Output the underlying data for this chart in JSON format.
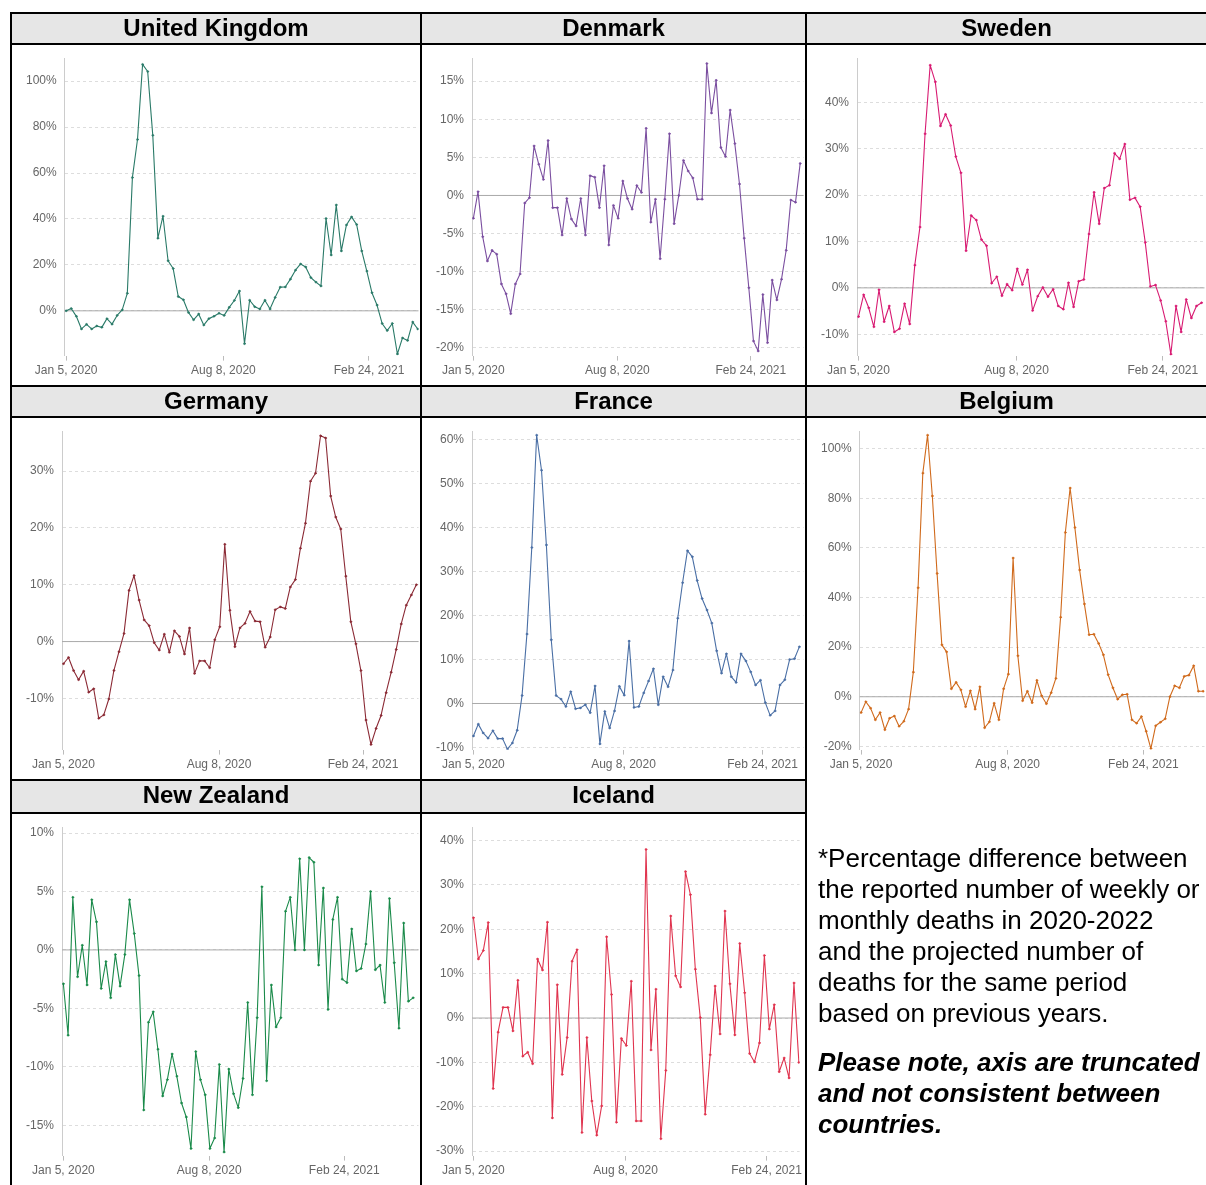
{
  "chart_data": [
    {
      "type": "line",
      "title": "United Kingdom",
      "x": [
        "2020-01-05",
        "2020-01-12",
        "2020-01-19",
        "2020-01-26",
        "2020-02-02",
        "2020-02-09",
        "2020-02-16",
        "2020-02-23",
        "2020-03-01",
        "2020-03-08",
        "2020-03-15",
        "2020-03-22",
        "2020-03-29",
        "2020-04-05",
        "2020-04-12",
        "2020-04-19",
        "2020-04-26",
        "2020-05-03",
        "2020-05-10",
        "2020-05-17",
        "2020-05-24",
        "2020-05-31",
        "2020-06-07",
        "2020-06-14",
        "2020-06-21",
        "2020-06-28",
        "2020-07-05",
        "2020-07-12",
        "2020-07-19",
        "2020-07-26",
        "2020-08-02",
        "2020-08-09",
        "2020-08-16",
        "2020-08-23",
        "2020-08-30",
        "2020-09-06",
        "2020-09-13",
        "2020-09-20",
        "2020-09-27",
        "2020-10-04",
        "2020-10-11",
        "2020-10-18",
        "2020-10-25",
        "2020-11-01",
        "2020-11-08",
        "2020-11-15",
        "2020-11-22",
        "2020-11-29",
        "2020-12-06",
        "2020-12-13",
        "2020-12-20",
        "2020-12-27",
        "2021-01-03",
        "2021-01-10",
        "2021-01-17",
        "2021-01-24",
        "2021-01-31",
        "2021-02-07",
        "2021-02-14",
        "2021-02-21",
        "2021-02-28",
        "2021-03-07",
        "2021-03-14",
        "2021-03-21",
        "2021-03-28",
        "2021-04-04",
        "2021-04-11",
        "2021-04-18",
        "2021-04-25",
        "2021-05-02"
      ],
      "series": [
        {
          "color": "#2a7a68",
          "values": [
            0,
            1,
            -2.4,
            -7.9,
            -5.9,
            -7.9,
            -6.6,
            -7.2,
            -3.4,
            -5.8,
            -2,
            0.4,
            7.6,
            58,
            74.6,
            107.3,
            104.2,
            76.4,
            31.6,
            41.2,
            21.8,
            18.4,
            6.2,
            4.8,
            -0.7,
            -3.9,
            -1.4,
            -6.2,
            -3.4,
            -2.4,
            -1.1,
            -2,
            1.5,
            4.5,
            8.6,
            -14.3,
            4.6,
            1.8,
            0.8,
            4.6,
            0.8,
            5.8,
            10.3,
            10.4,
            13.8,
            17.7,
            20.4,
            19.1,
            14.5,
            12.5,
            10.8,
            40.2,
            24.3,
            46.1,
            26.1,
            37.4,
            40.9,
            37.6,
            26.1,
            17.3,
            7.9,
            2.5,
            -5.5,
            -8.6,
            -5.5,
            -18.8,
            -11.8,
            -12.9,
            -4.9,
            -7.9
          ]
        }
      ],
      "xlim": [
        "2020-01-03",
        "2021-05-03"
      ],
      "xticks": [
        {
          "value": "2020-01-05",
          "label": "Jan 5, 2020"
        },
        {
          "value": "2020-08-08",
          "label": "Aug 8, 2020"
        },
        {
          "value": "2021-02-24",
          "label": "Feb 24, 2021"
        }
      ],
      "ylim": [
        -19.5,
        110
      ],
      "yticks": [
        {
          "value": 0,
          "label": "0%"
        },
        {
          "value": 20,
          "label": "20%"
        },
        {
          "value": 40,
          "label": "40%"
        },
        {
          "value": 60,
          "label": "60%"
        },
        {
          "value": 80,
          "label": "80%"
        },
        {
          "value": 100,
          "label": "100%"
        }
      ],
      "grid": "y",
      "marker": "circle",
      "ref_lines": [
        {
          "axis": "y",
          "value": 0,
          "color": "#aaaaaa"
        }
      ]
    },
    {
      "type": "line",
      "title": "Denmark",
      "x": [
        "2020-01-05",
        "2020-01-12",
        "2020-01-19",
        "2020-01-26",
        "2020-02-02",
        "2020-02-09",
        "2020-02-16",
        "2020-02-23",
        "2020-03-01",
        "2020-03-08",
        "2020-03-15",
        "2020-03-22",
        "2020-03-29",
        "2020-04-05",
        "2020-04-12",
        "2020-04-19",
        "2020-04-26",
        "2020-05-03",
        "2020-05-10",
        "2020-05-17",
        "2020-05-24",
        "2020-05-31",
        "2020-06-07",
        "2020-06-14",
        "2020-06-21",
        "2020-06-28",
        "2020-07-05",
        "2020-07-12",
        "2020-07-19",
        "2020-07-26",
        "2020-08-02",
        "2020-08-09",
        "2020-08-16",
        "2020-08-23",
        "2020-08-30",
        "2020-09-06",
        "2020-09-13",
        "2020-09-20",
        "2020-09-27",
        "2020-10-04",
        "2020-10-11",
        "2020-10-18",
        "2020-10-25",
        "2020-11-01",
        "2020-11-08",
        "2020-11-15",
        "2020-11-22",
        "2020-11-29",
        "2020-12-06",
        "2020-12-13",
        "2020-12-20",
        "2020-12-27",
        "2021-01-03",
        "2021-01-10",
        "2021-01-17",
        "2021-01-24",
        "2021-01-31",
        "2021-02-07",
        "2021-02-14",
        "2021-02-21",
        "2021-02-28",
        "2021-03-07",
        "2021-03-14",
        "2021-03-21",
        "2021-03-28",
        "2021-04-04",
        "2021-04-11",
        "2021-04-18",
        "2021-04-25",
        "2021-05-02",
        "2021-05-09"
      ],
      "series": [
        {
          "color": "#7b4fa0",
          "values": [
            -3,
            0.5,
            -5.4,
            -8.6,
            -7.2,
            -7.7,
            -11.6,
            -12.9,
            -15.5,
            -11.6,
            -10.3,
            -1,
            -0.3,
            6.5,
            4.1,
            2.1,
            7.2,
            -1.6,
            -1.6,
            -5.2,
            -0.4,
            -3.1,
            -4,
            -0.4,
            -5.2,
            2.6,
            2.4,
            -1.6,
            3.9,
            -6.5,
            -1.3,
            -3,
            1.9,
            -0.4,
            -1.8,
            1.3,
            0.4,
            8.8,
            -3.5,
            -0.5,
            -8.3,
            -0.5,
            8.1,
            -3.7,
            0,
            4.6,
            3.2,
            2.3,
            -0.5,
            -0.5,
            17.3,
            10.8,
            15.1,
            6.3,
            5.1,
            11.2,
            6.8,
            1.5,
            -5.6,
            -12.1,
            -19.1,
            -20.4,
            -13,
            -19.3,
            -11.1,
            -13.7,
            -11,
            -7.2,
            -0.6,
            -0.9,
            4.2
          ]
        }
      ],
      "xlim": [
        "2020-01-03",
        "2021-05-14"
      ],
      "xticks": [
        {
          "value": "2020-01-05",
          "label": "Jan 5, 2020"
        },
        {
          "value": "2020-08-08",
          "label": "Aug 8, 2020"
        },
        {
          "value": "2021-02-24",
          "label": "Feb 24, 2021"
        }
      ],
      "ylim": [
        -21,
        18
      ],
      "yticks": [
        {
          "value": -20,
          "label": "-20%"
        },
        {
          "value": -15,
          "label": "-15%"
        },
        {
          "value": -10,
          "label": "-10%"
        },
        {
          "value": -5,
          "label": "-5%"
        },
        {
          "value": 0,
          "label": "0%"
        },
        {
          "value": 5,
          "label": "5%"
        },
        {
          "value": 10,
          "label": "10%"
        },
        {
          "value": 15,
          "label": "15%"
        }
      ],
      "grid": "y",
      "marker": "circle",
      "ref_lines": [
        {
          "axis": "y",
          "value": 0,
          "color": "#aaaaaa"
        }
      ]
    },
    {
      "type": "line",
      "title": "Sweden",
      "x": [
        "2020-01-05",
        "2020-01-12",
        "2020-01-19",
        "2020-01-26",
        "2020-02-02",
        "2020-02-09",
        "2020-02-16",
        "2020-02-23",
        "2020-03-01",
        "2020-03-08",
        "2020-03-15",
        "2020-03-22",
        "2020-03-29",
        "2020-04-05",
        "2020-04-12",
        "2020-04-19",
        "2020-04-26",
        "2020-05-03",
        "2020-05-10",
        "2020-05-17",
        "2020-05-24",
        "2020-05-31",
        "2020-06-07",
        "2020-06-14",
        "2020-06-21",
        "2020-06-28",
        "2020-07-05",
        "2020-07-12",
        "2020-07-19",
        "2020-07-26",
        "2020-08-02",
        "2020-08-09",
        "2020-08-16",
        "2020-08-23",
        "2020-08-30",
        "2020-09-06",
        "2020-09-13",
        "2020-09-20",
        "2020-09-27",
        "2020-10-04",
        "2020-10-11",
        "2020-10-18",
        "2020-10-25",
        "2020-11-01",
        "2020-11-08",
        "2020-11-15",
        "2020-11-22",
        "2020-11-29",
        "2020-12-06",
        "2020-12-13",
        "2020-12-20",
        "2020-12-27",
        "2021-01-03",
        "2021-01-10",
        "2021-01-17",
        "2021-01-24",
        "2021-01-31",
        "2021-02-07",
        "2021-02-14",
        "2021-02-21",
        "2021-02-28",
        "2021-03-07",
        "2021-03-14",
        "2021-03-21",
        "2021-03-28",
        "2021-04-04",
        "2021-04-11",
        "2021-04-18"
      ],
      "series": [
        {
          "color": "#d81b72",
          "values": [
            -6.2,
            -1.5,
            -4.3,
            -8.4,
            -0.4,
            -7.3,
            -3.9,
            -9.5,
            -8.8,
            -3.4,
            -7.8,
            4.9,
            13.1,
            33.2,
            48,
            44.4,
            34.9,
            37.4,
            35,
            28.3,
            24.8,
            8,
            15.6,
            14.6,
            10.4,
            9.1,
            1,
            2.4,
            -1.7,
            0.8,
            -0.5,
            4.1,
            0.7,
            3.9,
            -4.9,
            -1.8,
            0.1,
            -1.9,
            -0.3,
            -3.9,
            -4.6,
            1.1,
            -4.1,
            1.4,
            1.8,
            11.6,
            20.6,
            13.8,
            21.5,
            22.1,
            29,
            27.8,
            31,
            19,
            19.4,
            17.5,
            9.8,
            0.3,
            0.6,
            -2.7,
            -7.2,
            -14.3,
            -3.9,
            -9.5,
            -2.5,
            -6.5,
            -3.9,
            -3.2
          ]
        }
      ],
      "xlim": [
        "2020-01-03",
        "2021-04-22"
      ],
      "xticks": [
        {
          "value": "2020-01-05",
          "label": "Jan 5, 2020"
        },
        {
          "value": "2020-08-08",
          "label": "Aug 8, 2020"
        },
        {
          "value": "2021-02-24",
          "label": "Feb 24, 2021"
        }
      ],
      "ylim": [
        -14.6,
        49.5
      ],
      "yticks": [
        {
          "value": -10,
          "label": "-10%"
        },
        {
          "value": 0,
          "label": "0%"
        },
        {
          "value": 10,
          "label": "10%"
        },
        {
          "value": 20,
          "label": "20%"
        },
        {
          "value": 30,
          "label": "30%"
        },
        {
          "value": 40,
          "label": "40%"
        }
      ],
      "grid": "y",
      "marker": "circle",
      "ref_lines": [
        {
          "axis": "y",
          "value": 0,
          "color": "#aaaaaa"
        }
      ]
    },
    {
      "type": "line",
      "title": "Germany",
      "x": [
        "2020-01-05",
        "2020-01-12",
        "2020-01-19",
        "2020-01-26",
        "2020-02-02",
        "2020-02-09",
        "2020-02-16",
        "2020-02-23",
        "2020-03-01",
        "2020-03-08",
        "2020-03-15",
        "2020-03-22",
        "2020-03-29",
        "2020-04-05",
        "2020-04-12",
        "2020-04-19",
        "2020-04-26",
        "2020-05-03",
        "2020-05-10",
        "2020-05-17",
        "2020-05-24",
        "2020-05-31",
        "2020-06-07",
        "2020-06-14",
        "2020-06-21",
        "2020-06-28",
        "2020-07-05",
        "2020-07-12",
        "2020-07-19",
        "2020-07-26",
        "2020-08-02",
        "2020-08-09",
        "2020-08-16",
        "2020-08-23",
        "2020-08-30",
        "2020-09-06",
        "2020-09-13",
        "2020-09-20",
        "2020-09-27",
        "2020-10-04",
        "2020-10-11",
        "2020-10-18",
        "2020-10-25",
        "2020-11-01",
        "2020-11-08",
        "2020-11-15",
        "2020-11-22",
        "2020-11-29",
        "2020-12-06",
        "2020-12-13",
        "2020-12-20",
        "2020-12-27",
        "2021-01-03",
        "2021-01-10",
        "2021-01-17",
        "2021-01-24",
        "2021-01-31",
        "2021-02-07",
        "2021-02-14",
        "2021-02-21",
        "2021-02-28",
        "2021-03-07",
        "2021-03-14",
        "2021-03-21",
        "2021-03-28",
        "2021-04-04",
        "2021-04-11",
        "2021-04-18",
        "2021-04-25",
        "2021-05-02",
        "2021-05-09"
      ],
      "series": [
        {
          "color": "#8b2a35",
          "values": [
            -3.9,
            -2.8,
            -5.1,
            -6.7,
            -5.2,
            -8.9,
            -8.3,
            -13.5,
            -12.9,
            -10.1,
            -5.1,
            -1.8,
            1.4,
            9,
            11.6,
            7.3,
            3.8,
            2.8,
            -0.2,
            -1.5,
            1.3,
            -1.9,
            1.9,
            0.9,
            -2.2,
            2.4,
            -5.6,
            -3.4,
            -3.4,
            -4.6,
            0.3,
            2.6,
            17.1,
            5.5,
            -0.9,
            2.4,
            3.2,
            5.3,
            3.6,
            3.5,
            -1,
            0.8,
            5.6,
            6.1,
            5.8,
            9.6,
            10.9,
            16.4,
            20.8,
            28.2,
            29.6,
            36.2,
            35.8,
            25.6,
            21.9,
            19.8,
            11.5,
            3.5,
            -0.4,
            -5.1,
            -13.8,
            -18.1,
            -15.3,
            -13,
            -9,
            -5.4,
            -1.4,
            3.1,
            6.4,
            8.2,
            10
          ]
        }
      ],
      "xlim": [
        "2020-01-03",
        "2021-05-12"
      ],
      "xticks": [
        {
          "value": "2020-01-05",
          "label": "Jan 5, 2020"
        },
        {
          "value": "2020-08-08",
          "label": "Aug 8, 2020"
        },
        {
          "value": "2021-02-24",
          "label": "Feb 24, 2021"
        }
      ],
      "ylim": [
        -19,
        37
      ],
      "yticks": [
        {
          "value": -10,
          "label": "-10%"
        },
        {
          "value": 0,
          "label": "0%"
        },
        {
          "value": 10,
          "label": "10%"
        },
        {
          "value": 20,
          "label": "20%"
        },
        {
          "value": 30,
          "label": "30%"
        }
      ],
      "grid": "y",
      "marker": "circle",
      "ref_lines": [
        {
          "axis": "y",
          "value": 0,
          "color": "#aaaaaa"
        }
      ]
    },
    {
      "type": "line",
      "title": "France",
      "x": [
        "2020-01-05",
        "2020-01-12",
        "2020-01-19",
        "2020-01-26",
        "2020-02-02",
        "2020-02-09",
        "2020-02-16",
        "2020-02-23",
        "2020-03-01",
        "2020-03-08",
        "2020-03-15",
        "2020-03-22",
        "2020-03-29",
        "2020-04-05",
        "2020-04-12",
        "2020-04-19",
        "2020-04-26",
        "2020-05-03",
        "2020-05-10",
        "2020-05-17",
        "2020-05-24",
        "2020-05-31",
        "2020-06-07",
        "2020-06-14",
        "2020-06-21",
        "2020-06-28",
        "2020-07-05",
        "2020-07-12",
        "2020-07-19",
        "2020-07-26",
        "2020-08-02",
        "2020-08-09",
        "2020-08-16",
        "2020-08-23",
        "2020-08-30",
        "2020-09-06",
        "2020-09-13",
        "2020-09-20",
        "2020-09-27",
        "2020-10-04",
        "2020-10-11",
        "2020-10-18",
        "2020-10-25",
        "2020-11-01",
        "2020-11-08",
        "2020-11-15",
        "2020-11-22",
        "2020-11-29",
        "2020-12-06",
        "2020-12-13",
        "2020-12-20",
        "2020-12-27",
        "2021-01-03",
        "2021-01-10",
        "2021-01-17",
        "2021-01-24",
        "2021-01-31",
        "2021-02-07",
        "2021-02-14",
        "2021-02-21",
        "2021-02-28",
        "2021-03-07",
        "2021-03-14",
        "2021-03-21",
        "2021-03-28",
        "2021-04-04",
        "2021-04-11",
        "2021-04-18"
      ],
      "series": [
        {
          "color": "#4a6fa5",
          "values": [
            -7.4,
            -4.7,
            -6.7,
            -7.9,
            -6.2,
            -8,
            -8,
            -10.4,
            -9,
            -6.1,
            1.8,
            15.8,
            35.5,
            61.1,
            53.1,
            36.1,
            14.5,
            1.8,
            1,
            -0.7,
            2.7,
            -1.2,
            -1,
            -0.3,
            -2.1,
            4,
            -9.2,
            -1.8,
            -5.6,
            -1.7,
            3.9,
            1.9,
            14.2,
            -0.9,
            -0.7,
            2.4,
            5.1,
            7.9,
            -0.3,
            6.1,
            3.8,
            7.6,
            19.4,
            27.5,
            34.8,
            33.4,
            28,
            23.9,
            21.3,
            18.3,
            12,
            6.9,
            11.3,
            6.1,
            4.8,
            11.3,
            9.7,
            7.2,
            4.2,
            5.3,
            0.2,
            -2.7,
            -1.7,
            4.2,
            5.4,
            10,
            10.2,
            12.9
          ]
        }
      ],
      "xlim": [
        "2020-01-03",
        "2021-04-24"
      ],
      "xticks": [
        {
          "value": "2020-01-05",
          "label": "Jan 5, 2020"
        },
        {
          "value": "2020-08-08",
          "label": "Aug 8, 2020"
        },
        {
          "value": "2021-02-24",
          "label": "Feb 24, 2021"
        }
      ],
      "ylim": [
        -10.5,
        62
      ],
      "yticks": [
        {
          "value": -10,
          "label": "-10%"
        },
        {
          "value": 0,
          "label": "0%"
        },
        {
          "value": 10,
          "label": "10%"
        },
        {
          "value": 20,
          "label": "20%"
        },
        {
          "value": 30,
          "label": "30%"
        },
        {
          "value": 40,
          "label": "40%"
        },
        {
          "value": 50,
          "label": "50%"
        },
        {
          "value": 60,
          "label": "60%"
        }
      ],
      "grid": "y",
      "marker": "circle",
      "ref_lines": [
        {
          "axis": "y",
          "value": 0,
          "color": "#aaaaaa"
        }
      ]
    },
    {
      "type": "line",
      "title": "Belgium",
      "x": [
        "2020-01-05",
        "2020-01-12",
        "2020-01-19",
        "2020-01-26",
        "2020-02-02",
        "2020-02-09",
        "2020-02-16",
        "2020-02-23",
        "2020-03-01",
        "2020-03-08",
        "2020-03-15",
        "2020-03-22",
        "2020-03-29",
        "2020-04-05",
        "2020-04-12",
        "2020-04-19",
        "2020-04-26",
        "2020-05-03",
        "2020-05-10",
        "2020-05-17",
        "2020-05-24",
        "2020-05-31",
        "2020-06-07",
        "2020-06-14",
        "2020-06-21",
        "2020-06-28",
        "2020-07-05",
        "2020-07-12",
        "2020-07-19",
        "2020-07-26",
        "2020-08-02",
        "2020-08-09",
        "2020-08-16",
        "2020-08-23",
        "2020-08-30",
        "2020-09-06",
        "2020-09-13",
        "2020-09-20",
        "2020-09-27",
        "2020-10-04",
        "2020-10-11",
        "2020-10-18",
        "2020-10-25",
        "2020-11-01",
        "2020-11-08",
        "2020-11-15",
        "2020-11-22",
        "2020-11-29",
        "2020-12-06",
        "2020-12-13",
        "2020-12-20",
        "2020-12-27",
        "2021-01-03",
        "2021-01-10",
        "2021-01-17",
        "2021-01-24",
        "2021-01-31",
        "2021-02-07",
        "2021-02-14",
        "2021-02-21",
        "2021-02-28",
        "2021-03-07",
        "2021-03-14",
        "2021-03-21",
        "2021-03-28",
        "2021-04-04",
        "2021-04-11",
        "2021-04-18",
        "2021-04-25",
        "2021-05-02",
        "2021-05-09",
        "2021-05-16",
        "2021-05-23"
      ],
      "series": [
        {
          "color": "#d06a1c",
          "values": [
            -6.4,
            -2,
            -4.6,
            -9.3,
            -6.4,
            -13.3,
            -8.7,
            -7.8,
            -11.9,
            -9.9,
            -5,
            9.9,
            43.9,
            90.1,
            105.4,
            80.9,
            49.7,
            20.9,
            18.1,
            3.2,
            5.8,
            2.8,
            -4,
            2.4,
            -5,
            4,
            -12.5,
            -10.1,
            -2.6,
            -9.3,
            3.2,
            9.1,
            55.9,
            16.5,
            -1.6,
            2.2,
            -2.4,
            6.6,
            0.4,
            -2.8,
            1.6,
            7.4,
            32,
            66.2,
            84.1,
            68.2,
            51.1,
            37.4,
            25,
            25.2,
            21.5,
            16.9,
            8.9,
            3.6,
            -1,
            0.8,
            1,
            -9.3,
            -10.7,
            -8,
            -13.9,
            -20.9,
            -11.7,
            -10.3,
            -8.9,
            0,
            4.4,
            3.6,
            8.2,
            8.7,
            12.5,
            2.2,
            2.2
          ]
        }
      ],
      "xlim": [
        "2020-01-03",
        "2021-05-25"
      ],
      "xticks": [
        {
          "value": "2020-01-05",
          "label": "Jan 5, 2020"
        },
        {
          "value": "2020-08-08",
          "label": "Aug 8, 2020"
        },
        {
          "value": "2021-02-24",
          "label": "Feb 24, 2021"
        }
      ],
      "ylim": [
        -21.3,
        107
      ],
      "yticks": [
        {
          "value": -20,
          "label": "-20%"
        },
        {
          "value": 0,
          "label": "0%"
        },
        {
          "value": 20,
          "label": "20%"
        },
        {
          "value": 40,
          "label": "40%"
        },
        {
          "value": 60,
          "label": "60%"
        },
        {
          "value": 80,
          "label": "80%"
        },
        {
          "value": 100,
          "label": "100%"
        }
      ],
      "grid": "y",
      "marker": "circle",
      "ref_lines": [
        {
          "axis": "y",
          "value": 0,
          "color": "#aaaaaa"
        }
      ]
    },
    {
      "type": "line",
      "title": "New Zealand",
      "x": [
        "2020-01-05",
        "2020-01-12",
        "2020-01-19",
        "2020-01-26",
        "2020-02-02",
        "2020-02-09",
        "2020-02-16",
        "2020-02-23",
        "2020-03-01",
        "2020-03-08",
        "2020-03-15",
        "2020-03-22",
        "2020-03-29",
        "2020-04-05",
        "2020-04-12",
        "2020-04-19",
        "2020-04-26",
        "2020-05-03",
        "2020-05-10",
        "2020-05-17",
        "2020-05-24",
        "2020-05-31",
        "2020-06-07",
        "2020-06-14",
        "2020-06-21",
        "2020-06-28",
        "2020-07-05",
        "2020-07-12",
        "2020-07-19",
        "2020-07-26",
        "2020-08-02",
        "2020-08-09",
        "2020-08-16",
        "2020-08-23",
        "2020-08-30",
        "2020-09-06",
        "2020-09-13",
        "2020-09-20",
        "2020-09-27",
        "2020-10-04",
        "2020-10-11",
        "2020-10-18",
        "2020-10-25",
        "2020-11-01",
        "2020-11-08",
        "2020-11-15",
        "2020-11-22",
        "2020-11-29",
        "2020-12-06",
        "2020-12-13",
        "2020-12-20",
        "2020-12-27",
        "2021-01-03",
        "2021-01-10",
        "2021-01-17",
        "2021-01-24",
        "2021-01-31",
        "2021-02-07",
        "2021-02-14",
        "2021-02-21",
        "2021-02-28",
        "2021-03-07",
        "2021-03-14",
        "2021-03-21",
        "2021-03-28",
        "2021-04-04",
        "2021-04-11",
        "2021-04-18",
        "2021-04-25",
        "2021-05-02",
        "2021-05-09",
        "2021-05-16",
        "2021-05-23",
        "2021-05-30",
        "2021-06-06"
      ],
      "series": [
        {
          "color": "#1a8a4a",
          "values": [
            -2.9,
            -7.3,
            4.5,
            -2.3,
            0.4,
            -3,
            4.3,
            2.4,
            -3.3,
            -1,
            -4.1,
            -0.4,
            -3.1,
            -0.4,
            4.3,
            1.4,
            -2.2,
            -13.7,
            -6.2,
            -5.3,
            -8.5,
            -12.5,
            -11.1,
            -8.9,
            -10.8,
            -13.1,
            -14.3,
            -17,
            -8.7,
            -11.1,
            -12.4,
            -17,
            -16.1,
            -9.8,
            -17.3,
            -10.2,
            -12.3,
            -13.5,
            -11,
            -4.5,
            -12.4,
            -5.8,
            5.4,
            -11.2,
            -3,
            -6.6,
            -5.8,
            3.3,
            4.5,
            0,
            7.8,
            0,
            7.9,
            7.5,
            -1.3,
            5.3,
            -5.1,
            2.6,
            4.5,
            -2.5,
            -2.8,
            1.8,
            -1.8,
            -1.6,
            0.5,
            5,
            -1.7,
            -1.3,
            -4.5,
            4.4,
            -1.1,
            -6.7,
            2.3,
            -4.4,
            -4.1
          ]
        }
      ],
      "xlim": [
        "2020-01-03",
        "2021-06-14"
      ],
      "xticks": [
        {
          "value": "2020-01-05",
          "label": "Jan 5, 2020"
        },
        {
          "value": "2020-08-08",
          "label": "Aug 8, 2020"
        },
        {
          "value": "2021-02-24",
          "label": "Feb 24, 2021"
        }
      ],
      "ylim": [
        -17.6,
        10.5
      ],
      "yticks": [
        {
          "value": -15,
          "label": "-15%"
        },
        {
          "value": -10,
          "label": "-10%"
        },
        {
          "value": -5,
          "label": "-5%"
        },
        {
          "value": 0,
          "label": "0%"
        },
        {
          "value": 5,
          "label": "5%"
        },
        {
          "value": 10,
          "label": "10%"
        }
      ],
      "grid": "y",
      "marker": "circle",
      "ref_lines": [
        {
          "axis": "y",
          "value": 0,
          "color": "#aaaaaa"
        }
      ]
    },
    {
      "type": "line",
      "title": "Iceland",
      "x": [
        "2020-01-05",
        "2020-01-12",
        "2020-01-19",
        "2020-01-26",
        "2020-02-02",
        "2020-02-09",
        "2020-02-16",
        "2020-02-23",
        "2020-03-01",
        "2020-03-08",
        "2020-03-15",
        "2020-03-22",
        "2020-03-29",
        "2020-04-05",
        "2020-04-12",
        "2020-04-19",
        "2020-04-26",
        "2020-05-03",
        "2020-05-10",
        "2020-05-17",
        "2020-05-24",
        "2020-05-31",
        "2020-06-07",
        "2020-06-14",
        "2020-06-21",
        "2020-06-28",
        "2020-07-05",
        "2020-07-12",
        "2020-07-19",
        "2020-07-26",
        "2020-08-02",
        "2020-08-09",
        "2020-08-16",
        "2020-08-23",
        "2020-08-30",
        "2020-09-06",
        "2020-09-13",
        "2020-09-20",
        "2020-09-27",
        "2020-10-04",
        "2020-10-11",
        "2020-10-18",
        "2020-10-25",
        "2020-11-01",
        "2020-11-08",
        "2020-11-15",
        "2020-11-22",
        "2020-11-29",
        "2020-12-06",
        "2020-12-13",
        "2020-12-20",
        "2020-12-27",
        "2021-01-03",
        "2021-01-10",
        "2021-01-17",
        "2021-01-24",
        "2021-01-31",
        "2021-02-07",
        "2021-02-14",
        "2021-02-21",
        "2021-02-28",
        "2021-03-07",
        "2021-03-14",
        "2021-03-21",
        "2021-03-28",
        "2021-04-04",
        "2021-04-11"
      ],
      "series": [
        {
          "color": "#e0344f",
          "values": [
            22.6,
            13.3,
            15.2,
            21.5,
            -15.9,
            -3.2,
            2.4,
            2.4,
            -2.9,
            8.5,
            -8.6,
            -7.7,
            -10.3,
            13.3,
            10.8,
            21.6,
            -22.5,
            7.5,
            -12.7,
            -4.4,
            12.8,
            15.4,
            -25.8,
            -4.4,
            -18.7,
            -26.4,
            -19.8,
            18.3,
            5.3,
            -23.5,
            -4.6,
            -6.2,
            8.3,
            -23.2,
            -23.2,
            38,
            -7.2,
            6.5,
            -27.2,
            -11.8,
            23,
            9.5,
            7,
            33,
            27.8,
            11,
            0.1,
            -21.7,
            -8.3,
            7.2,
            -3.6,
            24.1,
            7.7,
            -3.8,
            16.8,
            5.7,
            -8,
            -9.9,
            -5.6,
            14.1,
            -2.5,
            3,
            -12.1,
            -9,
            -13.5,
            7.9,
            -10
          ]
        }
      ],
      "xlim": [
        "2020-01-03",
        "2021-04-12"
      ],
      "xticks": [
        {
          "value": "2020-01-05",
          "label": "Jan 5, 2020"
        },
        {
          "value": "2020-08-08",
          "label": "Aug 8, 2020"
        },
        {
          "value": "2021-02-24",
          "label": "Feb 24, 2021"
        }
      ],
      "ylim": [
        -31,
        43
      ],
      "yticks": [
        {
          "value": -30,
          "label": "-30%"
        },
        {
          "value": -20,
          "label": "-20%"
        },
        {
          "value": -10,
          "label": "-10%"
        },
        {
          "value": 0,
          "label": "0%"
        },
        {
          "value": 10,
          "label": "10%"
        },
        {
          "value": 20,
          "label": "20%"
        },
        {
          "value": 30,
          "label": "30%"
        },
        {
          "value": 40,
          "label": "40%"
        }
      ],
      "grid": "y",
      "marker": "circle",
      "ref_lines": [
        {
          "axis": "y",
          "value": 0,
          "color": "#aaaaaa"
        }
      ]
    },
    {
      "type": "other",
      "annotations": [
        "*Percentage difference between the reported number of weekly or monthly deaths in 2020-2022 and the projected number of deaths for the same period based on previous years.",
        "Please note, axis are truncated and not consistent between countries."
      ]
    }
  ]
}
